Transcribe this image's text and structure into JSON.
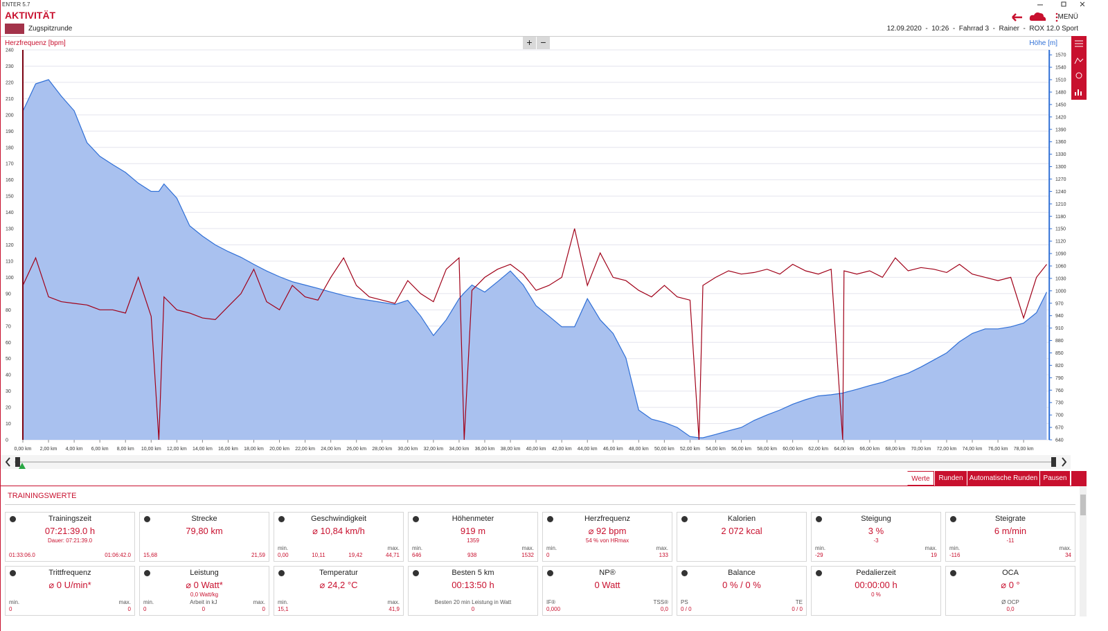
{
  "app": {
    "version": "ENTER 5.7",
    "section": "AKTIVITÄT",
    "activity": "Zugspitzrunde",
    "meta": "12.09.2020  -  10:26  -  Fahrrad 3  -  Rainer  -  ROX 12.0 Sport",
    "menu": "MENÜ",
    "zoom_in": "+",
    "zoom_out": "−"
  },
  "chart_data": {
    "type": "line",
    "grid": true,
    "x": [
      0,
      1,
      2,
      3,
      4,
      5,
      6,
      7,
      8,
      9,
      10,
      10.6,
      11,
      12,
      13,
      14,
      15,
      16,
      17,
      18,
      19,
      20,
      21,
      22,
      23,
      24,
      25,
      26,
      27,
      28,
      29,
      30,
      31,
      32,
      33,
      34,
      34.4,
      35,
      36,
      37,
      38,
      39,
      40,
      41,
      42,
      43,
      44,
      45,
      46,
      47,
      48,
      49,
      50,
      51,
      52,
      52.7,
      53,
      54,
      55,
      56,
      57,
      58,
      59,
      60,
      61,
      62,
      63,
      63.9,
      64,
      65,
      66,
      67,
      68,
      69,
      70,
      71,
      72,
      73,
      74,
      75,
      76,
      77,
      78,
      79,
      79.8
    ],
    "xlim": [
      0,
      80
    ],
    "xticks": [
      {
        "value": 0,
        "label": "0,00 km"
      },
      {
        "value": 2,
        "label": "2,00 km"
      },
      {
        "value": 4,
        "label": "4,00 km"
      },
      {
        "value": 6,
        "label": "6,00 km"
      },
      {
        "value": 8,
        "label": "8,00 km"
      },
      {
        "value": 10,
        "label": "10,00 km"
      },
      {
        "value": 12,
        "label": "12,00 km"
      },
      {
        "value": 14,
        "label": "14,00 km"
      },
      {
        "value": 16,
        "label": "16,00 km"
      },
      {
        "value": 18,
        "label": "18,00 km"
      },
      {
        "value": 20,
        "label": "20,00 km"
      },
      {
        "value": 22,
        "label": "22,00 km"
      },
      {
        "value": 24,
        "label": "24,00 km"
      },
      {
        "value": 26,
        "label": "26,00 km"
      },
      {
        "value": 28,
        "label": "28,00 km"
      },
      {
        "value": 30,
        "label": "30,00 km"
      },
      {
        "value": 32,
        "label": "32,00 km"
      },
      {
        "value": 34,
        "label": "34,00 km"
      },
      {
        "value": 36,
        "label": "36,00 km"
      },
      {
        "value": 38,
        "label": "38,00 km"
      },
      {
        "value": 40,
        "label": "40,00 km"
      },
      {
        "value": 42,
        "label": "42,00 km"
      },
      {
        "value": 44,
        "label": "44,00 km"
      },
      {
        "value": 46,
        "label": "46,00 km"
      },
      {
        "value": 48,
        "label": "48,00 km"
      },
      {
        "value": 50,
        "label": "50,00 km"
      },
      {
        "value": 52,
        "label": "52,00 km"
      },
      {
        "value": 54,
        "label": "54,00 km"
      },
      {
        "value": 56,
        "label": "56,00 km"
      },
      {
        "value": 58,
        "label": "58,00 km"
      },
      {
        "value": 60,
        "label": "60,00 km"
      },
      {
        "value": 62,
        "label": "62,00 km"
      },
      {
        "value": 64,
        "label": "64,00 km"
      },
      {
        "value": 66,
        "label": "66,00 km"
      },
      {
        "value": 68,
        "label": "68,00 km"
      },
      {
        "value": 70,
        "label": "70,00 km"
      },
      {
        "value": 72,
        "label": "72,00 km"
      },
      {
        "value": 74,
        "label": "74,00 km"
      },
      {
        "value": 76,
        "label": "76,00 km"
      },
      {
        "value": 78,
        "label": "78,00 km"
      }
    ],
    "ylim": [
      0,
      240
    ],
    "yticks": [
      0,
      10,
      20,
      30,
      40,
      50,
      60,
      70,
      80,
      90,
      100,
      110,
      120,
      130,
      140,
      150,
      160,
      170,
      180,
      190,
      200,
      210,
      220,
      230,
      240
    ],
    "y2lim": [
      640,
      1582
    ],
    "y2ticks": [
      640,
      670,
      700,
      730,
      760,
      790,
      820,
      850,
      880,
      910,
      940,
      970,
      1000,
      1030,
      1060,
      1090,
      1120,
      1150,
      1180,
      1210,
      1240,
      1270,
      1300,
      1330,
      1360,
      1390,
      1420,
      1450,
      1480,
      1510,
      1540,
      1570
    ],
    "series": [
      {
        "name": "Höhe [m]",
        "color": "#2f6fd6",
        "fill": "#a9c1ef",
        "axis": "y2",
        "values": [
          1434,
          1500,
          1510,
          1470,
          1435,
          1358,
          1325,
          1305,
          1286,
          1260,
          1240,
          1240,
          1258,
          1224,
          1157,
          1132,
          1111,
          1095,
          1081,
          1064,
          1048,
          1034,
          1022,
          1014,
          1006,
          997,
          989,
          982,
          977,
          972,
          967,
          977,
          939,
          892,
          930,
          981,
          995,
          1014,
          997,
          1022,
          1048,
          1014,
          964,
          939,
          913,
          913,
          981,
          930,
          897,
          838,
          712,
          690,
          682,
          670,
          648,
          645,
          645,
          653,
          662,
          670,
          687,
          700,
          712,
          726,
          737,
          746,
          749,
          753,
          754,
          762,
          771,
          779,
          791,
          801,
          816,
          833,
          850,
          877,
          897,
          908,
          908,
          913,
          922,
          947,
          997
        ]
      },
      {
        "name": "Herzfrequenz [bpm]",
        "color": "#a00018",
        "values": [
          95,
          112,
          88,
          85,
          84,
          83,
          80,
          80,
          78,
          100,
          76,
          0,
          88,
          80,
          78,
          75,
          74,
          82,
          90,
          105,
          85,
          80,
          95,
          88,
          86,
          100,
          112,
          95,
          88,
          86,
          84,
          98,
          90,
          85,
          105,
          112,
          0,
          92,
          100,
          105,
          108,
          102,
          92,
          95,
          100,
          130,
          95,
          115,
          100,
          98,
          92,
          88,
          95,
          88,
          86,
          0,
          95,
          100,
          104,
          102,
          103,
          105,
          102,
          108,
          104,
          102,
          105,
          0,
          104,
          102,
          104,
          100,
          112,
          104,
          106,
          105,
          103,
          108,
          102,
          100,
          98,
          100,
          75,
          100,
          108
        ]
      }
    ]
  },
  "tabs": [
    "Werte",
    "Runden",
    "Automatische Runden",
    "Pausen"
  ],
  "active_tab": 0,
  "panel_title": "TRAININGSWERTE",
  "cards": [
    {
      "title": "Trainingszeit",
      "value": "07:21:39.0 h",
      "note": "Dauer:  07:21:39.0",
      "cells": [
        {
          "value": "01:33:06.0"
        },
        {
          "value": "01:06:42.0"
        }
      ]
    },
    {
      "title": "Strecke",
      "value": "79,80 km",
      "cells": [
        {
          "value": "15,68"
        },
        {
          "value": "21,59"
        }
      ]
    },
    {
      "title": "Geschwindigkeit",
      "value": "⌀ 10,84 km/h",
      "cells": [
        {
          "label": "min.",
          "value": "0,00"
        },
        {
          "value": "10,11"
        },
        {
          "value": "19,42"
        },
        {
          "label": "max.",
          "value": "44,71"
        }
      ]
    },
    {
      "title": "Höhenmeter",
      "value": "919 m",
      "note": "1359",
      "cells": [
        {
          "label": "min.",
          "value": "646"
        },
        {
          "value": "938"
        },
        {
          "label": "max.",
          "value": "1532"
        }
      ]
    },
    {
      "title": "Herzfrequenz",
      "value": "⌀ 92 bpm",
      "note": "54 % von HRmax",
      "cells": [
        {
          "label": "min.",
          "value": "0"
        },
        {
          "label": "max.",
          "value": "133"
        }
      ]
    },
    {
      "title": "Kalorien",
      "value": "2 072 kcal",
      "cells": []
    },
    {
      "title": "Steigung",
      "value": "3 %",
      "note": "-3",
      "cells": [
        {
          "label": "min.",
          "value": "-29"
        },
        {
          "label": "max.",
          "value": "19"
        }
      ]
    },
    {
      "title": "Steigrate",
      "value": "6 m/min",
      "note": "-11",
      "cells": [
        {
          "label": "min.",
          "value": "-116"
        },
        {
          "label": "max.",
          "value": "34"
        }
      ]
    },
    {
      "title": "Trittfrequenz",
      "value": "⌀ 0 U/min*",
      "cells": [
        {
          "label": "min.",
          "value": "0"
        },
        {
          "label": "max.",
          "value": "0"
        }
      ]
    },
    {
      "title": "Leistung",
      "value": "⌀ 0 Watt*",
      "note": "0,0 Watt/kg",
      "cells": [
        {
          "label": "min.",
          "value": "0"
        },
        {
          "label": "Arbeit in kJ",
          "value": "0"
        },
        {
          "label": "max.",
          "value": "0"
        }
      ]
    },
    {
      "title": "Temperatur",
      "value": "⌀ 24,2 °C",
      "cells": [
        {
          "label": "min.",
          "value": "15,1"
        },
        {
          "label": "max.",
          "value": "41,9"
        }
      ]
    },
    {
      "title": "Besten 5 km",
      "value": "00:13:50 h",
      "cells": [
        {
          "label": "Besten 20 min Leistung in Watt",
          "value": "0"
        }
      ]
    },
    {
      "title": "NP®",
      "value": "0 Watt",
      "cells": [
        {
          "label": "IF®",
          "value": "0,000"
        },
        {
          "label": "TSS®",
          "value": "0,0"
        }
      ]
    },
    {
      "title": "Balance",
      "value": "0 %  /  0 %",
      "cells": [
        {
          "label": "PS",
          "value": "0  /  0"
        },
        {
          "label": "TE",
          "value": "0  /  0"
        }
      ]
    },
    {
      "title": "Pedalierzeit",
      "value": "00:00:00 h",
      "note": "0 %",
      "cells": []
    },
    {
      "title": "OCA",
      "value": "⌀ 0 °",
      "cells": [
        {
          "label": "Ø OCP",
          "value": "0,0"
        }
      ]
    }
  ]
}
